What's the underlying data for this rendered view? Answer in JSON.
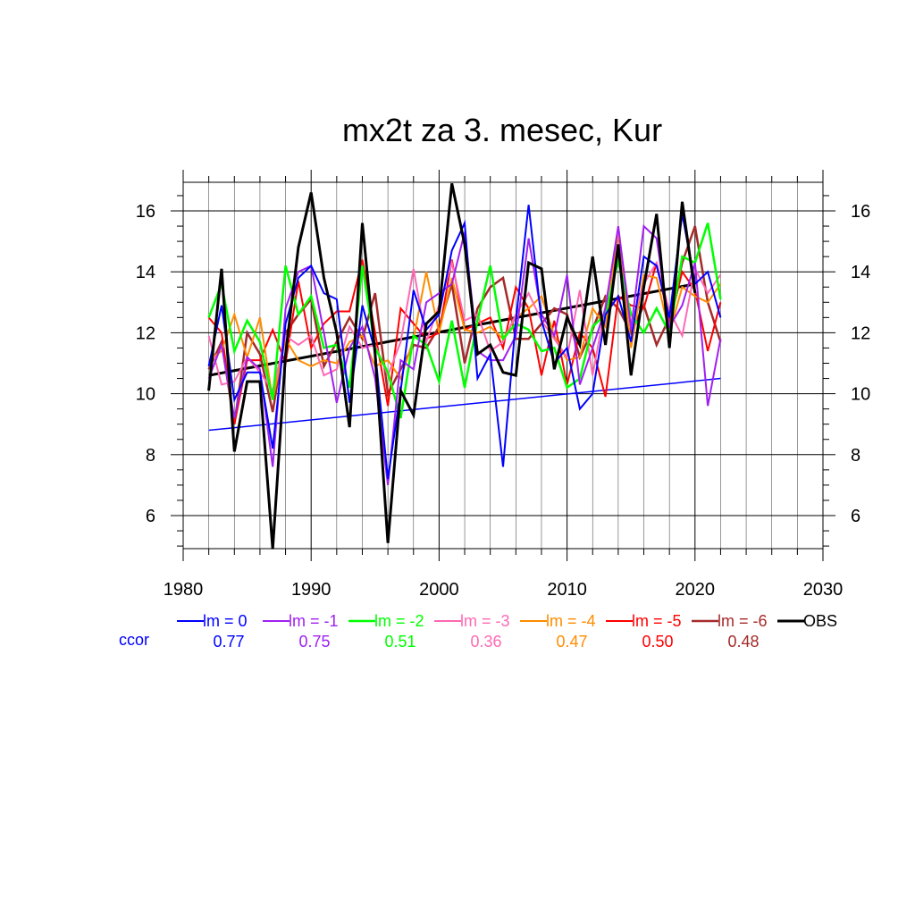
{
  "chart_data": {
    "type": "line",
    "title": "mx2t za 3. mesec, Kur",
    "xlabel": "",
    "ylabel": "",
    "xlim": [
      1980,
      2030
    ],
    "ylim": [
      4.8,
      16.9
    ],
    "x_ticks": [
      1980,
      1990,
      2000,
      2010,
      2020,
      2030
    ],
    "y_ticks": [
      6,
      8,
      10,
      12,
      14,
      16
    ],
    "grid": true,
    "legend_position": "bottom",
    "ccor_label": "ccor",
    "x": [
      1982,
      1983,
      1984,
      1985,
      1986,
      1987,
      1988,
      1989,
      1990,
      1991,
      1992,
      1993,
      1994,
      1995,
      1996,
      1997,
      1998,
      1999,
      2000,
      2001,
      2002,
      2003,
      2004,
      2005,
      2006,
      2007,
      2008,
      2009,
      2010,
      2011,
      2012,
      2013,
      2014,
      2015,
      2016,
      2017,
      2018,
      2019,
      2020,
      2021,
      2022
    ],
    "series": [
      {
        "name": "lm = 0",
        "ccor": "0.77",
        "color": "#0000ff",
        "width": 2,
        "values": [
          10.9,
          12.9,
          9.8,
          10.7,
          10.7,
          8.2,
          12.3,
          13.8,
          14.2,
          13.3,
          13.1,
          9.7,
          12.9,
          11.4,
          7.2,
          10.1,
          13.4,
          12.1,
          12.6,
          14.7,
          15.6,
          10.5,
          11.3,
          7.6,
          12.4,
          16.2,
          12.4,
          11.0,
          11.5,
          9.5,
          10.0,
          12.6,
          13.2,
          11.7,
          14.5,
          14.2,
          12.5,
          15.9,
          13.6,
          14.0,
          12.5
        ]
      },
      {
        "name": "lm = -1",
        "ccor": "0.75",
        "color": "#a020f0",
        "width": 2,
        "values": [
          10.5,
          11.6,
          9.2,
          11.2,
          10.8,
          7.6,
          12.8,
          14.0,
          14.2,
          12.0,
          9.7,
          11.5,
          12.2,
          10.5,
          7.0,
          11.1,
          10.8,
          13.0,
          13.3,
          13.6,
          15.3,
          11.4,
          11.1,
          11.1,
          11.9,
          15.1,
          12.6,
          11.9,
          13.9,
          10.3,
          11.5,
          12.8,
          15.5,
          12.1,
          15.5,
          15.1,
          12.2,
          12.9,
          14.3,
          9.6,
          11.8
        ]
      },
      {
        "name": "lm = -2",
        "ccor": "0.51",
        "color": "#00ff00",
        "width": 2.5,
        "values": [
          12.5,
          13.6,
          11.4,
          12.4,
          11.7,
          9.8,
          14.2,
          12.6,
          13.2,
          11.5,
          11.6,
          10.2,
          14.2,
          11.5,
          10.7,
          9.2,
          11.9,
          11.6,
          10.4,
          12.4,
          10.2,
          12.4,
          14.2,
          11.8,
          12.3,
          12.1,
          11.4,
          11.5,
          10.2,
          10.5,
          12.2,
          12.6,
          14.4,
          12.6,
          12.0,
          12.8,
          12.0,
          14.5,
          14.3,
          15.6,
          13.1
        ]
      },
      {
        "name": "lm = -3",
        "ccor": "0.36",
        "color": "#ff69b4",
        "width": 2,
        "values": [
          11.9,
          10.3,
          10.4,
          11.2,
          10.7,
          10.1,
          11.9,
          11.6,
          11.9,
          10.6,
          10.8,
          12.2,
          11.5,
          11.6,
          10.6,
          11.7,
          14.1,
          11.7,
          12.9,
          14.3,
          12.4,
          12.6,
          11.4,
          11.7,
          12.6,
          13.3,
          12.4,
          11.8,
          11.2,
          13.4,
          10.6,
          12.9,
          15.4,
          12.3,
          13.6,
          14.3,
          12.7,
          11.9,
          14.1,
          13.3,
          13.9
        ]
      },
      {
        "name": "lm = -4",
        "ccor": "0.47",
        "color": "#ff8c00",
        "width": 2,
        "values": [
          11.1,
          11.4,
          12.6,
          11.2,
          12.5,
          9.8,
          11.8,
          11.1,
          10.9,
          11.1,
          11.0,
          11.7,
          11.9,
          10.9,
          11.1,
          10.5,
          11.8,
          14.0,
          12.0,
          13.8,
          12.1,
          12.0,
          12.2,
          11.8,
          12.5,
          12.8,
          13.2,
          11.9,
          11.1,
          11.2,
          12.8,
          12.2,
          15.3,
          11.5,
          13.9,
          13.8,
          12.0,
          13.5,
          13.2,
          13.0,
          13.6
        ]
      },
      {
        "name": "lm = -5",
        "ccor": "0.50",
        "color": "#ff0000",
        "width": 2,
        "values": [
          12.5,
          12.0,
          9.0,
          11.1,
          11.1,
          12.1,
          11.0,
          13.7,
          11.5,
          12.3,
          12.7,
          12.7,
          14.4,
          12.0,
          9.6,
          12.8,
          12.3,
          11.8,
          12.0,
          14.4,
          12.1,
          12.3,
          12.5,
          11.5,
          13.5,
          12.8,
          10.6,
          12.4,
          10.3,
          12.0,
          11.5,
          9.9,
          13.2,
          12.9,
          12.8,
          14.3,
          12.3,
          14.0,
          13.4,
          11.4,
          13.0
        ]
      },
      {
        "name": "lm = -6",
        "ccor": "0.48",
        "color": "#a52a2a",
        "width": 2.5,
        "values": [
          10.8,
          11.7,
          9.0,
          12.0,
          11.3,
          9.4,
          12.0,
          12.6,
          13.1,
          10.9,
          11.7,
          12.5,
          11.8,
          13.3,
          10.0,
          10.8,
          11.6,
          11.5,
          12.2,
          13.6,
          11.0,
          12.8,
          13.5,
          13.8,
          11.8,
          11.8,
          12.3,
          12.8,
          12.6,
          11.2,
          12.1,
          13.2,
          12.8,
          12.0,
          12.9,
          11.6,
          12.5,
          14.3,
          15.5,
          13.0,
          11.7
        ]
      },
      {
        "name": "OBS",
        "ccor": "",
        "color": "#000000",
        "width": 3,
        "values": [
          10.1,
          14.1,
          8.1,
          10.4,
          10.4,
          4.9,
          11.3,
          14.8,
          16.6,
          13.8,
          12.0,
          8.9,
          15.6,
          11.3,
          5.1,
          10.1,
          9.3,
          12.3,
          12.7,
          16.9,
          14.9,
          11.3,
          11.6,
          10.7,
          10.6,
          14.3,
          14.1,
          10.8,
          12.5,
          11.6,
          14.5,
          11.6,
          14.9,
          10.6,
          13.5,
          15.9,
          11.5,
          16.3,
          13.3,
          null,
          null
        ]
      }
    ],
    "trend_lines": [
      {
        "name": "lm = 0 trend",
        "color": "#0000ff",
        "width": 1.5,
        "x": [
          1982,
          2022
        ],
        "y": [
          8.8,
          10.5
        ]
      },
      {
        "name": "OBS trend",
        "color": "#000000",
        "width": 3,
        "x": [
          1982,
          2020
        ],
        "y": [
          10.6,
          13.6
        ]
      }
    ]
  }
}
